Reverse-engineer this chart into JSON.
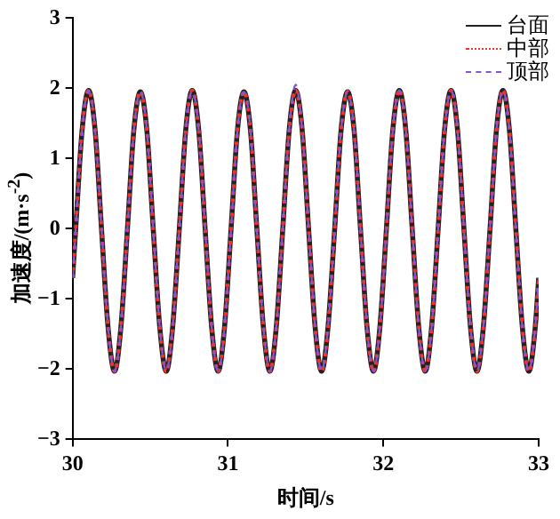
{
  "chart_data": {
    "type": "line",
    "xlabel": "时间/s",
    "ylabel": "加速度/(m·s$^{-2}$)",
    "x": [
      30,
      30.02,
      30.061,
      30.103,
      30.145,
      30.186,
      30.228,
      30.27,
      30.311,
      30.353,
      30.394,
      30.436,
      30.478,
      30.519,
      30.561,
      30.603,
      30.644,
      30.687,
      30.728,
      30.77,
      30.812,
      30.853,
      30.895,
      30.937,
      30.978,
      31.02,
      31.061,
      31.103,
      31.145,
      31.186,
      31.228,
      31.27,
      31.311,
      31.353,
      31.394,
      31.436,
      31.478,
      31.519,
      31.561,
      31.603,
      31.644,
      31.687,
      31.728,
      31.77,
      31.812,
      31.853,
      31.895,
      31.937,
      31.978,
      32.02,
      32.061,
      32.103,
      32.145,
      32.186,
      32.228,
      32.27,
      32.311,
      32.353,
      32.394,
      32.436,
      32.478,
      32.519,
      32.561,
      32.603,
      32.644,
      32.687,
      32.728,
      32.77,
      32.812,
      32.853,
      32.895,
      32.937,
      32.978,
      33
    ],
    "series": [
      {
        "name": "台面",
        "color": "#222222",
        "line_style": "solid",
        "values": [
          -0.7,
          0,
          1.4,
          1.97,
          1.4,
          0,
          -1.4,
          -2.03,
          -1.4,
          0,
          1.4,
          1.95,
          1.4,
          0,
          -1.4,
          -2.03,
          -1.4,
          0,
          1.4,
          1.97,
          1.4,
          0,
          -1.4,
          -2.03,
          -1.4,
          0,
          1.4,
          1.95,
          1.4,
          0,
          -1.4,
          -2.03,
          -1.4,
          0,
          1.4,
          1.97,
          1.4,
          0,
          -1.4,
          -2.03,
          -1.4,
          0,
          1.4,
          1.95,
          1.4,
          0,
          -1.4,
          -2.03,
          -1.4,
          0,
          1.4,
          1.97,
          1.4,
          0,
          -1.4,
          -2.03,
          -1.4,
          0,
          1.4,
          1.97,
          1.4,
          0,
          -1.4,
          -2.03,
          -1.4,
          0,
          1.4,
          1.97,
          1.4,
          0,
          -1.4,
          -2.03,
          -1.4,
          -0.7
        ]
      },
      {
        "name": "中部",
        "color": "#ee3333",
        "line_style": "dotted",
        "values": [
          -0.7,
          0,
          1.4,
          1.97,
          1.4,
          0,
          -1.4,
          -2.03,
          -1.4,
          0,
          1.4,
          1.95,
          1.4,
          0,
          -1.4,
          -2.03,
          -1.4,
          0,
          1.4,
          1.97,
          1.4,
          0,
          -1.4,
          -2.03,
          -1.4,
          0,
          1.4,
          1.95,
          1.4,
          0,
          -1.4,
          -2.03,
          -1.4,
          0,
          1.4,
          1.97,
          1.4,
          0,
          -1.4,
          -2.03,
          -1.4,
          0,
          1.4,
          1.95,
          1.4,
          0,
          -1.4,
          -2.03,
          -1.4,
          0,
          1.4,
          1.97,
          1.4,
          0,
          -1.4,
          -2.03,
          -1.4,
          0,
          1.4,
          1.97,
          1.4,
          0,
          -1.4,
          -2.03,
          -1.4,
          0,
          1.4,
          1.97,
          1.4,
          0,
          -1.4,
          -2.03,
          -1.4,
          -0.7
        ]
      },
      {
        "name": "顶部",
        "color": "#8855cc",
        "line_style": "dashed",
        "values": [
          -0.7,
          0,
          1.4,
          1.97,
          1.4,
          0,
          -1.4,
          -2.03,
          -1.4,
          0,
          1.4,
          1.95,
          1.4,
          0,
          -1.4,
          -2.03,
          -1.4,
          0,
          1.4,
          1.97,
          1.4,
          0,
          -1.4,
          -2.03,
          -1.4,
          0,
          1.4,
          1.95,
          1.4,
          0,
          -1.4,
          -2.03,
          -1.4,
          0,
          1.4,
          2.05,
          1.4,
          0,
          -1.4,
          -2.03,
          -1.4,
          0,
          1.4,
          1.95,
          1.4,
          0,
          -1.4,
          -2.03,
          -1.4,
          0,
          1.4,
          1.97,
          1.4,
          0,
          -1.4,
          -2.03,
          -1.4,
          0,
          1.4,
          1.97,
          1.4,
          0,
          -1.4,
          -2.03,
          -1.4,
          0,
          1.4,
          1.97,
          1.4,
          0,
          -1.4,
          -2.03,
          -1.4,
          -0.7
        ]
      }
    ],
    "xlim": [
      30,
      33
    ],
    "xticks": [
      30,
      31,
      32,
      33
    ],
    "ylim": [
      -3,
      3
    ],
    "yticks": [
      -3,
      -2,
      -1,
      0,
      1,
      2,
      3
    ],
    "grid": false,
    "legend": "top right",
    "marker": "none"
  }
}
